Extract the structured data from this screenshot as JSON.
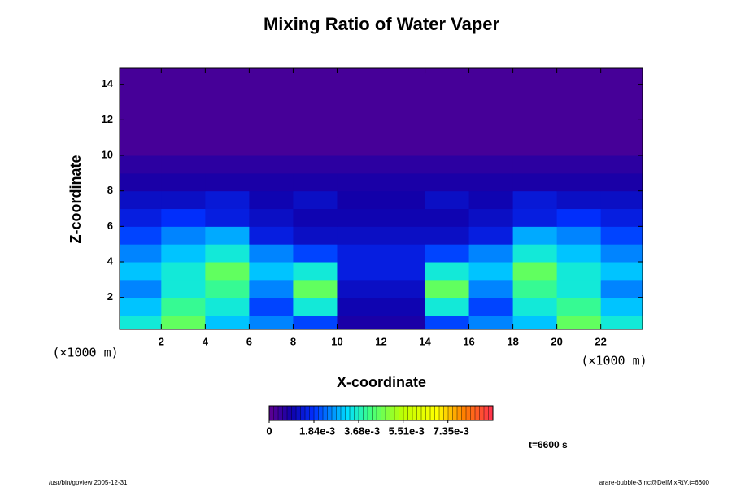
{
  "chart_data": {
    "type": "heatmap",
    "title": "Mixing Ratio of Water Vaper",
    "xlabel": "X-coordinate",
    "ylabel": "Z-coordinate",
    "xunit": "(×1000 m)",
    "yunit": "(×1000 m)",
    "xlim": [
      0.1,
      23.9
    ],
    "ylim": [
      0.2,
      14.9
    ],
    "xticks": [
      2,
      4,
      6,
      8,
      10,
      12,
      14,
      16,
      18,
      20,
      22
    ],
    "yticks": [
      2,
      4,
      6,
      8,
      10,
      12,
      14
    ],
    "x": [
      1,
      3,
      5,
      7,
      9,
      11,
      13,
      15,
      17,
      19,
      21,
      23
    ],
    "y": [
      0.5,
      1.5,
      2.5,
      3.5,
      4.5,
      5.5,
      6.5,
      7.5,
      8.5,
      9.5,
      10.5,
      11.5,
      12.5,
      13.5,
      14.5
    ],
    "z": [
      [
        0.0035,
        0.0045,
        0.003,
        0.0025,
        0.002,
        0.0008,
        0.0008,
        0.002,
        0.0025,
        0.003,
        0.0045,
        0.0035
      ],
      [
        0.003,
        0.004,
        0.0035,
        0.002,
        0.0035,
        0.001,
        0.001,
        0.0035,
        0.002,
        0.0035,
        0.004,
        0.003
      ],
      [
        0.0025,
        0.0035,
        0.004,
        0.0025,
        0.0045,
        0.0012,
        0.0012,
        0.0045,
        0.0025,
        0.004,
        0.0035,
        0.0025
      ],
      [
        0.003,
        0.0035,
        0.0045,
        0.003,
        0.0035,
        0.0015,
        0.0015,
        0.0035,
        0.003,
        0.0045,
        0.0035,
        0.003
      ],
      [
        0.0025,
        0.003,
        0.0035,
        0.0025,
        0.002,
        0.0015,
        0.0015,
        0.002,
        0.0025,
        0.0035,
        0.003,
        0.0025
      ],
      [
        0.002,
        0.0025,
        0.0028,
        0.0015,
        0.0012,
        0.0012,
        0.0012,
        0.0012,
        0.0015,
        0.0028,
        0.0025,
        0.002
      ],
      [
        0.0015,
        0.0018,
        0.0015,
        0.0012,
        0.001,
        0.001,
        0.001,
        0.001,
        0.0012,
        0.0015,
        0.0018,
        0.0015
      ],
      [
        0.0012,
        0.0012,
        0.0014,
        0.001,
        0.0012,
        0.0009,
        0.0009,
        0.0012,
        0.001,
        0.0014,
        0.0012,
        0.0012
      ],
      [
        0.0008,
        0.0008,
        0.0008,
        0.0008,
        0.0008,
        0.0008,
        0.0008,
        0.0008,
        0.0008,
        0.0008,
        0.0008,
        0.0008
      ],
      [
        0.0006,
        0.0006,
        0.0006,
        0.0006,
        0.0006,
        0.0006,
        0.0006,
        0.0006,
        0.0006,
        0.0006,
        0.0006,
        0.0006
      ],
      [
        0.0003,
        0.0003,
        0.0003,
        0.0003,
        0.0003,
        0.0003,
        0.0003,
        0.0003,
        0.0003,
        0.0003,
        0.0003,
        0.0003
      ],
      [
        0.0003,
        0.0003,
        0.0003,
        0.0003,
        0.0003,
        0.0003,
        0.0003,
        0.0003,
        0.0003,
        0.0003,
        0.0003,
        0.0003
      ],
      [
        0.0003,
        0.0003,
        0.0003,
        0.0003,
        0.0003,
        0.0003,
        0.0003,
        0.0003,
        0.0003,
        0.0003,
        0.0003,
        0.0003
      ],
      [
        0.0003,
        0.0003,
        0.0003,
        0.0003,
        0.0003,
        0.0003,
        0.0003,
        0.0003,
        0.0003,
        0.0003,
        0.0003,
        0.0003
      ],
      [
        0.0003,
        0.0003,
        0.0003,
        0.0003,
        0.0003,
        0.0003,
        0.0003,
        0.0003,
        0.0003,
        0.0003,
        0.0003,
        0.0003
      ]
    ],
    "zlim": [
      0,
      0.0092
    ],
    "zticks": [
      {
        "value": 0,
        "label": "0"
      },
      {
        "value": 0.00184,
        "label": "1.84e-3"
      },
      {
        "value": 0.00368,
        "label": "3.68e-3"
      },
      {
        "value": 0.00551,
        "label": "5.51e-3"
      },
      {
        "value": 0.00735,
        "label": "7.35e-3"
      }
    ],
    "time_label": "t=6600 s",
    "footer_left": "/usr/bin/gpview 2005-12-31",
    "footer_right": "arare-bubble-3.nc@DelMixRtV,t=6600"
  }
}
